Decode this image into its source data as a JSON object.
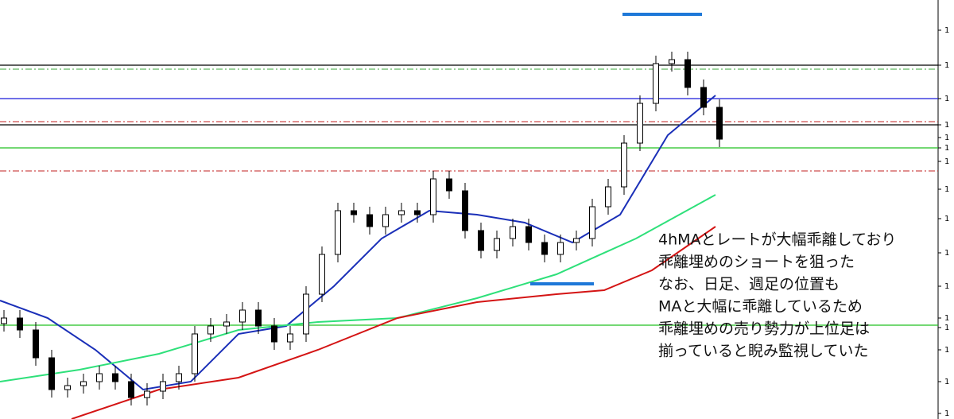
{
  "chart_data": {
    "type": "candlestick",
    "x": [
      5,
      25,
      45,
      65,
      85,
      105,
      125,
      145,
      165,
      185,
      205,
      225,
      245,
      265,
      285,
      305,
      325,
      345,
      365,
      385,
      405,
      425,
      445,
      465,
      485,
      505,
      525,
      545,
      565,
      585,
      605,
      625,
      645,
      665,
      685,
      705,
      725,
      745,
      765,
      785,
      805,
      825,
      845,
      865,
      885,
      905
    ],
    "open": [
      120,
      127,
      112,
      77,
      37,
      42,
      47,
      57,
      47,
      27,
      35,
      47,
      57,
      107,
      117,
      122,
      137,
      117,
      97,
      107,
      157,
      207,
      262,
      257,
      242,
      257,
      262,
      257,
      302,
      287,
      237,
      212,
      227,
      242,
      222,
      207,
      222,
      227,
      267,
      292,
      347,
      397,
      447,
      452,
      417,
      392
    ],
    "high": [
      137,
      137,
      122,
      87,
      52,
      57,
      67,
      67,
      57,
      45,
      57,
      67,
      117,
      127,
      132,
      147,
      147,
      127,
      117,
      167,
      217,
      272,
      272,
      267,
      267,
      272,
      272,
      312,
      312,
      297,
      247,
      237,
      252,
      252,
      232,
      232,
      237,
      277,
      302,
      357,
      407,
      457,
      462,
      462,
      427,
      402
    ],
    "low": [
      110,
      102,
      67,
      27,
      27,
      32,
      37,
      37,
      17,
      17,
      25,
      37,
      47,
      97,
      107,
      112,
      107,
      87,
      87,
      97,
      147,
      197,
      247,
      232,
      232,
      247,
      247,
      247,
      277,
      227,
      202,
      202,
      217,
      212,
      197,
      197,
      212,
      217,
      257,
      282,
      337,
      387,
      437,
      407,
      382,
      342
    ],
    "close": [
      127,
      112,
      77,
      37,
      42,
      47,
      57,
      47,
      27,
      35,
      47,
      57,
      107,
      117,
      122,
      137,
      117,
      97,
      107,
      157,
      207,
      262,
      257,
      242,
      257,
      262,
      257,
      302,
      287,
      237,
      212,
      227,
      242,
      222,
      207,
      222,
      227,
      267,
      292,
      347,
      397,
      447,
      452,
      417,
      392,
      352
    ],
    "lines": [
      {
        "color": "#1a2fb8",
        "x": [
          0,
          60,
          120,
          180,
          240,
          300,
          360,
          420,
          480,
          540,
          600,
          660,
          720,
          780,
          840,
          900
        ],
        "values": [
          149,
          127,
          87,
          37,
          47,
          107,
          117,
          167,
          227,
          262,
          257,
          247,
          222,
          257,
          357,
          407
        ]
      },
      {
        "color": "#2ee07a",
        "x": [
          0,
          100,
          200,
          300,
          400,
          500,
          600,
          700,
          800,
          900
        ],
        "values": [
          47,
          62,
          82,
          112,
          122,
          127,
          152,
          182,
          227,
          282
        ]
      },
      {
        "color": "#d41414",
        "x": [
          90,
          200,
          300,
          400,
          500,
          600,
          700,
          760,
          820,
          900
        ],
        "values": [
          0,
          37,
          52,
          87,
          127,
          147,
          157,
          162,
          187,
          242
        ]
      }
    ],
    "levels": [
      {
        "value": 445,
        "color": "#000000",
        "style": "solid"
      },
      {
        "value": 440,
        "color": "#3aa63a",
        "style": "dashdot"
      },
      {
        "value": 403,
        "color": "#1a1adb",
        "style": "solid"
      },
      {
        "value": 374,
        "color": "#c02020",
        "style": "dashdot"
      },
      {
        "value": 370,
        "color": "#000000",
        "style": "solid"
      },
      {
        "value": 341,
        "color": "#22c022",
        "style": "solid"
      },
      {
        "value": 312,
        "color": "#c02020",
        "style": "dashdot"
      },
      {
        "value": 118,
        "color": "#22c022",
        "style": "solid"
      }
    ],
    "marker_lines": [
      {
        "x": [
          783,
          883
        ],
        "value": 509,
        "color": "#1e78d8"
      },
      {
        "x": [
          667,
          747
        ],
        "value": 170,
        "color": "#1e78d8"
      }
    ],
    "xlim": [
      0,
      1180
    ],
    "ylim": [
      0,
      527
    ],
    "yticks": [
      {
        "value": 489,
        "label": "1"
      },
      {
        "value": 445,
        "label": "1"
      },
      {
        "value": 403,
        "label": "1"
      },
      {
        "value": 370,
        "label": "1"
      },
      {
        "value": 354,
        "label": "1"
      },
      {
        "value": 341,
        "label": "1"
      },
      {
        "value": 324,
        "label": "1"
      },
      {
        "value": 289,
        "label": "1"
      },
      {
        "value": 252,
        "label": "1"
      },
      {
        "value": 209,
        "label": "1"
      },
      {
        "value": 167,
        "label": "1"
      },
      {
        "value": 127,
        "label": "1"
      },
      {
        "value": 115,
        "label": "1"
      },
      {
        "value": 87,
        "label": "1"
      },
      {
        "value": 47,
        "label": "1"
      },
      {
        "value": 7,
        "label": "1"
      }
    ],
    "annotation": [
      "4hMAとレートが大幅乖離しており",
      "乖離埋めのショートを狙った",
      "なお、日足、週足の位置も",
      "MAと大幅に乖離しているため",
      "乖離埋めの売り勢力が上位足は",
      "揃っていると睨み監視していた"
    ]
  }
}
